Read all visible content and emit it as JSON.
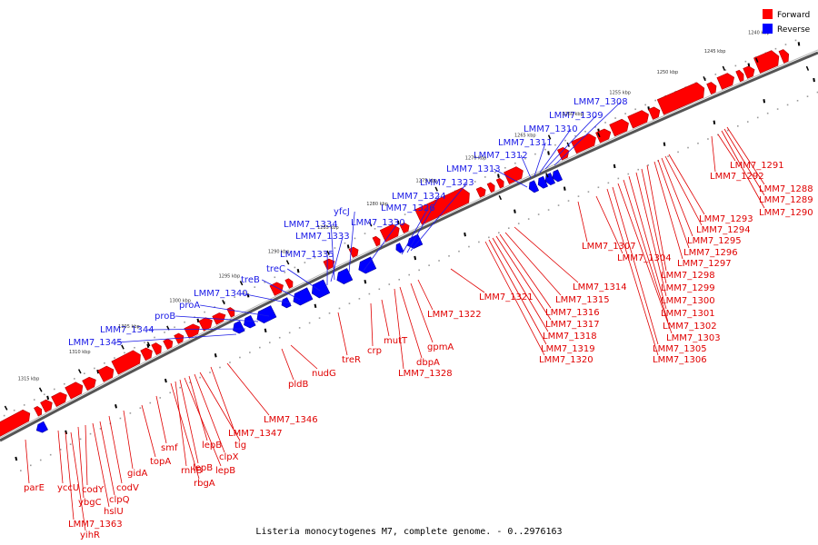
{
  "caption": "Listeria monocytogenes M7, complete genome. - 0..2976163",
  "legend": {
    "forward_label": "Forward",
    "reverse_label": "Reverse",
    "forward_color": "#ff0000",
    "reverse_color": "#0000ff"
  },
  "kbp_ticks": [
    "1240 kbp",
    "1245 kbp",
    "1250 kbp",
    "1255 kbp",
    "1260 kbp",
    "1265 kbp",
    "1270 kbp",
    "1275 kbp",
    "1280 kbp",
    "1285 kbp",
    "1290 kbp",
    "1295 kbp",
    "1300 kbp",
    "1305 kbp",
    "1310 kbp",
    "1315 kbp"
  ],
  "forward_genes": [
    "LMM7_1291",
    "LMM7_1292",
    "LMM7_1288",
    "LMM7_1289",
    "LMM7_1290",
    "LMM7_1293",
    "LMM7_1294",
    "LMM7_1295",
    "LMM7_1296",
    "LMM7_1297",
    "LMM7_1298",
    "LMM7_1299",
    "LMM7_1300",
    "LMM7_1301",
    "LMM7_1302",
    "LMM7_1303",
    "LMM7_1305",
    "LMM7_1306",
    "LMM7_1307",
    "LMM7_1304",
    "LMM7_1314",
    "LMM7_1315",
    "LMM7_1316",
    "LMM7_1317",
    "LMM7_1318",
    "LMM7_1319",
    "LMM7_1320",
    "LMM7_1321",
    "LMM7_1322",
    "gpmA",
    "dbpA",
    "LMM7_1328",
    "mutT",
    "crp",
    "treR",
    "nudG",
    "pldB",
    "LMM7_1346",
    "LMM7_1347",
    "tig",
    "clpX",
    "lepB",
    "lepB",
    "lepB",
    "rnhB",
    "rbgA",
    "smf",
    "topA",
    "gidA",
    "codV",
    "clpQ",
    "hslU",
    "codY",
    "ybgC",
    "yccU",
    "parE",
    "LMM7_1363",
    "yihR"
  ],
  "reverse_genes": [
    "LMM7_1308",
    "LMM7_1309",
    "LMM7_1310",
    "LMM7_1311",
    "LMM7_1312",
    "LMM7_1313",
    "LMM7_1323",
    "LMM7_1324",
    "LMM7_1326",
    "yfcJ",
    "LMM7_1330",
    "LMM7_1334",
    "LMM7_1333",
    "LMM7_1335",
    "treC",
    "treB",
    "LMM7_1340",
    "proA",
    "proB",
    "LMM7_1344",
    "LMM7_1345"
  ]
}
